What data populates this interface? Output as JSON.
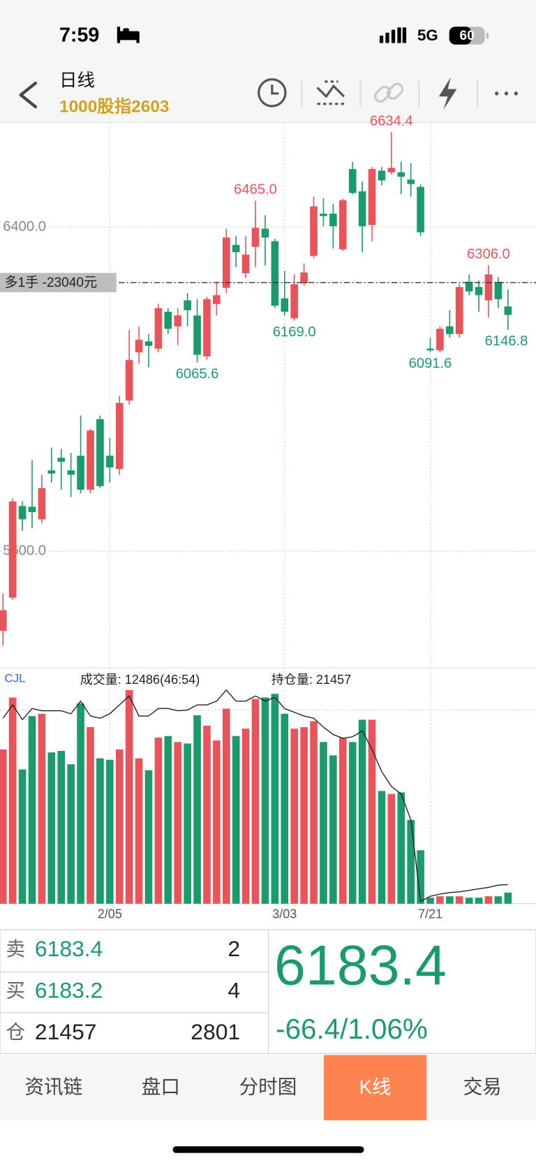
{
  "status_bar": {
    "time": "7:59",
    "network": "5G",
    "battery": "60"
  },
  "header": {
    "title": "日线",
    "subtitle": "1000股指2603"
  },
  "chart_data": {
    "type": "candlestick",
    "categories": [
      null,
      null,
      null,
      null,
      null,
      null,
      null,
      null,
      null,
      null,
      null,
      "2/05",
      null,
      null,
      null,
      null,
      null,
      null,
      null,
      null,
      null,
      null,
      null,
      null,
      null,
      null,
      null,
      null,
      null,
      "3/03",
      null,
      null,
      null,
      null,
      null,
      null,
      null,
      null,
      null,
      null,
      null,
      null,
      null,
      null,
      "7/21",
      null,
      null,
      null,
      null,
      null,
      null,
      null,
      null
    ],
    "open": [
      5404,
      5486,
      5712,
      5710,
      5679,
      5800,
      5831,
      5800,
      5836,
      5752,
      5926,
      5836,
      5803,
      5972,
      6091,
      6118,
      6100,
      6191,
      6155,
      6219,
      6182,
      6081,
      6210,
      6250,
      6356,
      6286,
      6351,
      6396,
      6365,
      6224,
      6175,
      6261,
      6329,
      6433,
      6433,
      6345,
      6543,
      6488,
      6405,
      6539,
      6535,
      6535,
      6517,
      6499,
      6100,
      6096,
      6155,
      6136,
      6265,
      6252,
      6219,
      6265,
      6204
    ],
    "high": [
      5496,
      5730,
      5723,
      5825,
      5789,
      5856,
      5853,
      5843,
      5935,
      5902,
      5935,
      5880,
      5984,
      6146,
      6155,
      6136,
      6210,
      6200,
      6200,
      6237,
      6222,
      6228,
      6265,
      6396,
      6378,
      6378,
      6465.0,
      6429,
      6371,
      6292,
      6283,
      6310,
      6475,
      6471,
      6457,
      6470,
      6561,
      6512,
      6548,
      6548,
      6634.4,
      6561,
      6557,
      6506,
      6127,
      6155,
      6195,
      6259,
      6283,
      6268,
      6306.0,
      6277,
      6246
    ],
    "low": [
      5367,
      5481,
      5651,
      5657,
      5670,
      5770,
      5752,
      5734,
      5743,
      5743,
      5756,
      5770,
      5789,
      5962,
      6063,
      6054,
      6091,
      6136,
      6109,
      6155,
      6065.6,
      6072,
      6182,
      6237,
      6301,
      6274,
      6301,
      6305,
      6200,
      6182,
      6169.0,
      6255,
      6323,
      6402,
      6347,
      6341,
      6481,
      6338,
      6365,
      6503,
      6530,
      6481,
      6475,
      6378,
      6091.6,
      6091,
      6127,
      6127,
      6232,
      6191,
      6177,
      6200,
      6146.8
    ],
    "close": [
      5455,
      5723,
      5679,
      5697,
      5756,
      5792,
      5821,
      5789,
      5752,
      5898,
      5761,
      5807,
      5966,
      6072,
      6122,
      6107,
      6200,
      6149,
      6182,
      6195,
      6085,
      6222,
      6232,
      6374,
      6338,
      6332,
      6398,
      6374,
      6206,
      6191,
      6259,
      6288,
      6451,
      6427,
      6402,
      6466,
      6484,
      6402,
      6543,
      6515,
      6546,
      6524,
      6506,
      6387,
      6096,
      6149,
      6136,
      6252,
      6241,
      6232,
      6283,
      6222,
      6183.4
    ],
    "high_labels": [
      null,
      null,
      null,
      null,
      null,
      null,
      null,
      null,
      null,
      null,
      null,
      null,
      null,
      null,
      null,
      null,
      null,
      null,
      null,
      null,
      null,
      null,
      null,
      null,
      null,
      null,
      "6465.0",
      null,
      null,
      null,
      null,
      null,
      null,
      null,
      null,
      null,
      null,
      null,
      null,
      null,
      "6634.4",
      null,
      null,
      null,
      null,
      null,
      null,
      null,
      null,
      null,
      "6306.0",
      null,
      null
    ],
    "low_labels": [
      null,
      null,
      null,
      null,
      null,
      null,
      null,
      null,
      null,
      null,
      null,
      null,
      null,
      null,
      null,
      null,
      null,
      null,
      null,
      null,
      "6065.6",
      null,
      null,
      null,
      null,
      null,
      null,
      null,
      null,
      null,
      "6169.0",
      null,
      null,
      null,
      null,
      null,
      null,
      null,
      null,
      null,
      null,
      null,
      null,
      null,
      "6091.6",
      null,
      null,
      null,
      null,
      null,
      null,
      null,
      "6146.8"
    ],
    "ylim": [
      5313,
      6658
    ],
    "yticks": [
      {
        "value": 6400,
        "label": "6400.0"
      },
      {
        "value": 5600,
        "label": "5600.0"
      }
    ],
    "up_color": "#e8545a",
    "down_color": "#1a9b6c",
    "grid": true,
    "position_line": {
      "label": "多1手 -23040元",
      "value": 6263
    },
    "indicator_label": "CJL",
    "volume": {
      "title": "成交量: 12486(46:54)",
      "ylim": [
        0,
        240000
      ],
      "values": [
        173300,
        231600,
        150800,
        210700,
        213200,
        169900,
        171600,
        156600,
        224900,
        198300,
        163300,
        161600,
        173300,
        239900,
        163300,
        149900,
        186600,
        188300,
        181600,
        179900,
        211600,
        199900,
        183300,
        219100,
        188300,
        196600,
        229900,
        231600,
        235700,
        213300,
        196600,
        198300,
        204900,
        181600,
        166600,
        186600,
        181600,
        206600,
        206600,
        126600,
        123300,
        125000,
        94100,
        60000,
        6700,
        8300,
        8300,
        8300,
        6700,
        6700,
        8300,
        8300,
        12486
      ]
    },
    "open_interest": {
      "title": "持仓量: 21457",
      "color": "#222222",
      "values": [
        208300,
        223300,
        206700,
        219200,
        216700,
        216700,
        216700,
        213300,
        227500,
        210800,
        208300,
        213300,
        223300,
        233300,
        210800,
        210800,
        219200,
        219200,
        216700,
        217500,
        223300,
        223300,
        227500,
        240000,
        227500,
        227500,
        233300,
        227500,
        231700,
        219200,
        215000,
        210800,
        208300,
        198300,
        190000,
        185800,
        187500,
        194200,
        173300,
        148300,
        131700,
        123300,
        94200,
        2500,
        8300,
        10800,
        12500,
        13300,
        15000,
        16700,
        18300,
        20800,
        21457
      ]
    }
  },
  "quote": {
    "sell": {
      "label": "卖",
      "price": 6183.4,
      "qty": 2
    },
    "buy": {
      "label": "买",
      "price": 6183.2,
      "qty": 4
    },
    "open_interest": {
      "label": "仓",
      "value": 21457,
      "change": 2801
    },
    "last": 6183.4,
    "change": "-66.4/1.06%"
  },
  "tabs": {
    "items": [
      "资讯链",
      "盘口",
      "分时图",
      "K线",
      "交易"
    ],
    "active": 3
  }
}
